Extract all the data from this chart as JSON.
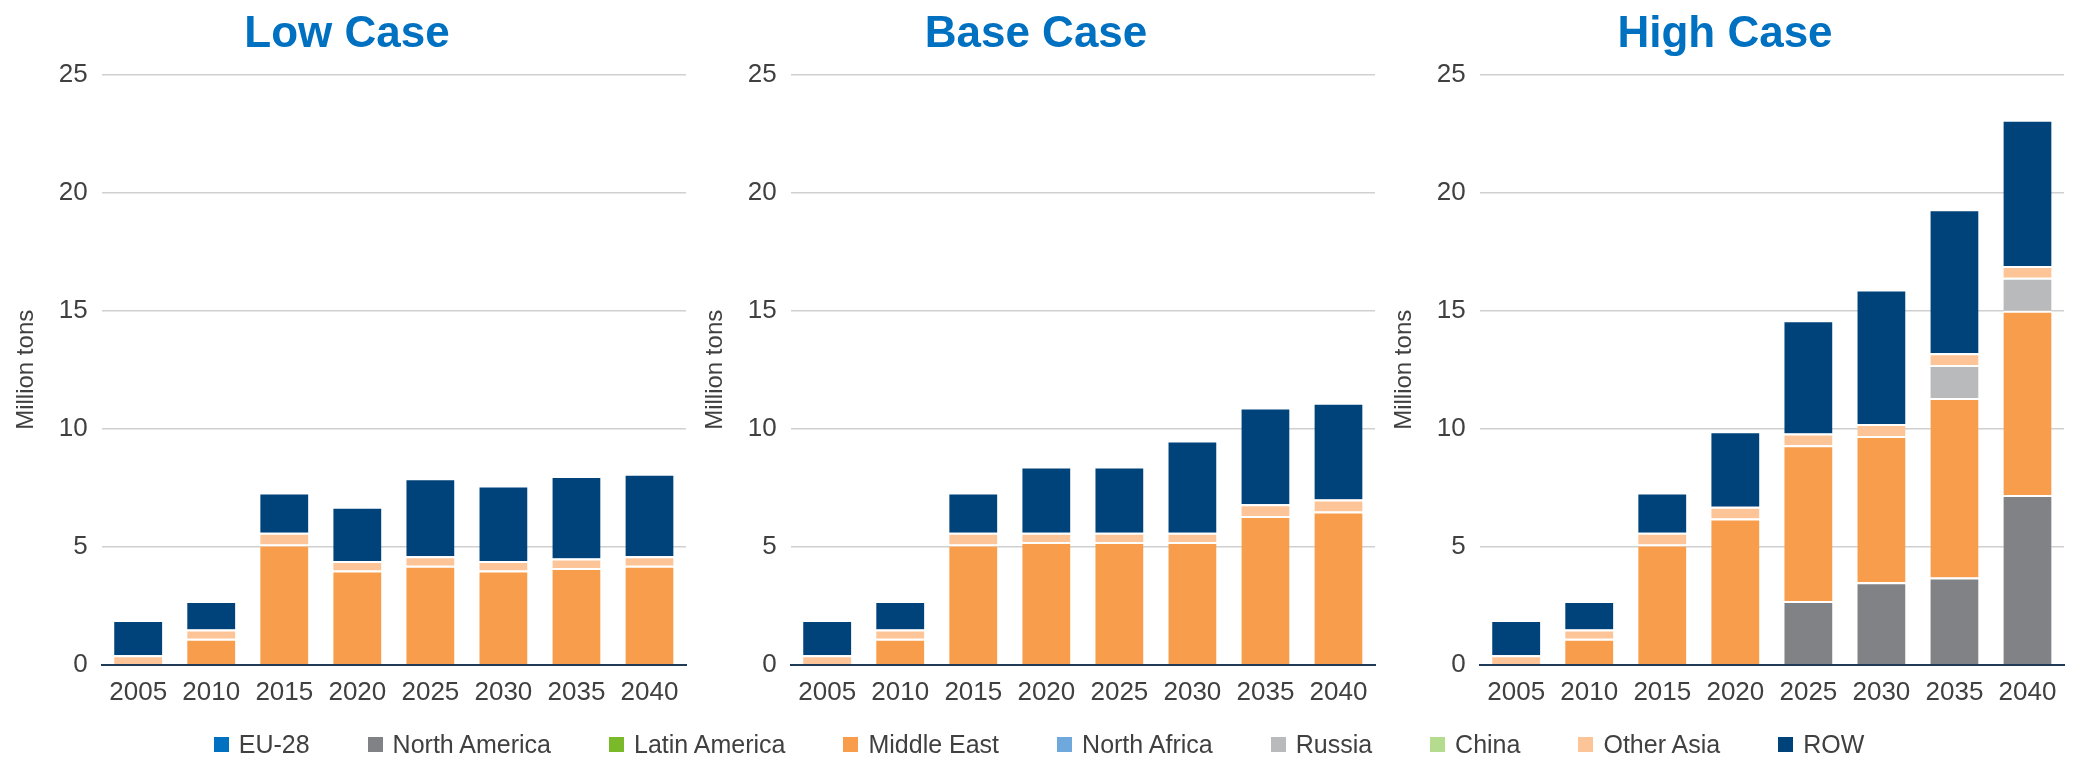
{
  "chart_data": [
    {
      "type": "bar",
      "title": "Low Case",
      "ylabel": "Million tons",
      "stacked": true,
      "grid": "y",
      "legend": "bottom",
      "categories": [
        "2005",
        "2010",
        "2015",
        "2020",
        "2025",
        "2030",
        "2035",
        "2040"
      ],
      "ylim": [
        0,
        25
      ],
      "yticks": [
        0,
        5,
        10,
        15,
        20,
        25
      ],
      "series": [
        {
          "name": "EU-28",
          "color": "#0070c0",
          "values": [
            0,
            0,
            0,
            0,
            0,
            0,
            0,
            0
          ]
        },
        {
          "name": "North America",
          "color": "#808285",
          "values": [
            0,
            0,
            0,
            0,
            0,
            0,
            0,
            0
          ]
        },
        {
          "name": "Latin America",
          "color": "#7ab929",
          "values": [
            0,
            0,
            0,
            0,
            0,
            0,
            0,
            0
          ]
        },
        {
          "name": "Middle East",
          "color": "#f79d4b",
          "values": [
            0,
            1.1,
            5.1,
            4.0,
            4.2,
            4.0,
            4.1,
            4.2
          ]
        },
        {
          "name": "North Africa",
          "color": "#6fa8dc",
          "values": [
            0,
            0,
            0,
            0,
            0,
            0,
            0,
            0
          ]
        },
        {
          "name": "Russia",
          "color": "#b9babc",
          "values": [
            0,
            0,
            0,
            0,
            0,
            0,
            0,
            0
          ]
        },
        {
          "name": "China",
          "color": "#b5dc8e",
          "values": [
            0,
            0,
            0,
            0,
            0,
            0,
            0,
            0
          ]
        },
        {
          "name": "Other Asia",
          "color": "#fdc597",
          "values": [
            0.4,
            0.4,
            0.5,
            0.4,
            0.4,
            0.4,
            0.4,
            0.4
          ]
        },
        {
          "name": "ROW",
          "color": "#00427a",
          "values": [
            1.5,
            1.2,
            1.7,
            2.3,
            3.3,
            3.2,
            3.5,
            3.5
          ]
        }
      ]
    },
    {
      "type": "bar",
      "title": "Base Case",
      "ylabel": "Million tons",
      "stacked": true,
      "grid": "y",
      "categories": [
        "2005",
        "2010",
        "2015",
        "2020",
        "2025",
        "2030",
        "2035",
        "2040"
      ],
      "ylim": [
        0,
        25
      ],
      "yticks": [
        0,
        5,
        10,
        15,
        20,
        25
      ],
      "series": [
        {
          "color": "#0070c0",
          "values": [
            0,
            0,
            0,
            0,
            0,
            0,
            0,
            0
          ]
        },
        {
          "color": "#808285",
          "values": [
            0,
            0,
            0,
            0,
            0,
            0,
            0,
            0
          ]
        },
        {
          "color": "#7ab929",
          "values": [
            0,
            0,
            0,
            0,
            0,
            0,
            0,
            0
          ]
        },
        {
          "color": "#f79d4b",
          "values": [
            0,
            1.1,
            5.1,
            5.2,
            5.2,
            5.2,
            6.3,
            6.5
          ]
        },
        {
          "color": "#6fa8dc",
          "values": [
            0,
            0,
            0,
            0,
            0,
            0,
            0,
            0
          ]
        },
        {
          "color": "#b9babc",
          "values": [
            0,
            0,
            0,
            0,
            0,
            0,
            0,
            0
          ]
        },
        {
          "color": "#b5dc8e",
          "values": [
            0,
            0,
            0,
            0,
            0,
            0,
            0,
            0
          ]
        },
        {
          "color": "#fdc597",
          "values": [
            0.4,
            0.4,
            0.5,
            0.4,
            0.4,
            0.4,
            0.5,
            0.5
          ]
        },
        {
          "color": "#00427a",
          "values": [
            1.5,
            1.2,
            1.7,
            2.8,
            2.8,
            3.9,
            4.1,
            4.1
          ]
        }
      ]
    },
    {
      "type": "bar",
      "title": "High Case",
      "ylabel": "Million tons",
      "stacked": true,
      "grid": "y",
      "categories": [
        "2005",
        "2010",
        "2015",
        "2020",
        "2025",
        "2030",
        "2035",
        "2040"
      ],
      "ylim": [
        0,
        25
      ],
      "yticks": [
        0,
        5,
        10,
        15,
        20,
        25
      ],
      "series": [
        {
          "color": "#0070c0",
          "values": [
            0,
            0,
            0,
            0,
            0,
            0,
            0,
            0
          ]
        },
        {
          "color": "#808285",
          "values": [
            0,
            0,
            0,
            0,
            2.7,
            3.5,
            3.7,
            7.2
          ]
        },
        {
          "color": "#7ab929",
          "values": [
            0,
            0,
            0,
            0,
            0,
            0,
            0,
            0
          ]
        },
        {
          "color": "#f79d4b",
          "values": [
            0,
            1.1,
            5.1,
            6.2,
            6.6,
            6.2,
            7.6,
            7.8
          ]
        },
        {
          "color": "#6fa8dc",
          "values": [
            0,
            0,
            0,
            0,
            0,
            0,
            0,
            0
          ]
        },
        {
          "color": "#b9babc",
          "values": [
            0,
            0,
            0,
            0,
            0,
            0,
            1.4,
            1.4
          ]
        },
        {
          "color": "#b5dc8e",
          "values": [
            0,
            0,
            0,
            0,
            0,
            0,
            0,
            0
          ]
        },
        {
          "color": "#fdc597",
          "values": [
            0.4,
            0.4,
            0.5,
            0.5,
            0.5,
            0.5,
            0.5,
            0.5
          ]
        },
        {
          "color": "#00427a",
          "values": [
            1.5,
            1.2,
            1.7,
            3.2,
            4.8,
            5.7,
            6.1,
            6.2
          ]
        }
      ]
    }
  ]
}
